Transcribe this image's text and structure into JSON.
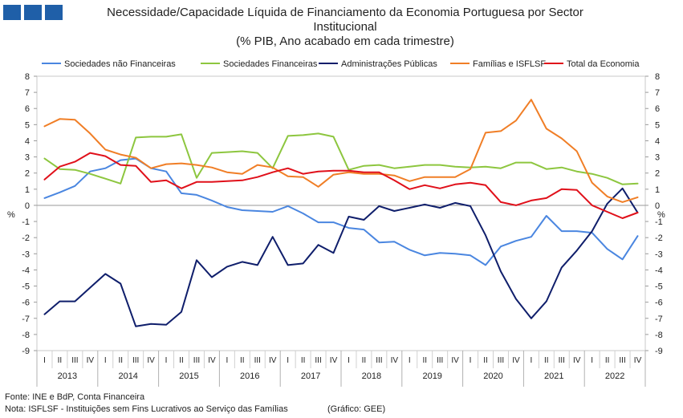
{
  "title": {
    "line1": "Necessidade/Capacidade Líquida de Financiamento da Economia Portuguesa por Sector",
    "line2": "Institucional",
    "line3": "(% PIB, Ano acabado em cada trimestre)"
  },
  "footer": {
    "source": "Fonte: INE e  BdP, Conta Financeira",
    "note": "Nota: ISFLSF - Instituições sem Fins Lucrativos ao Serviço das Famílias",
    "credit": "(Gráfico: GEE)"
  },
  "brand": {
    "logo_color": "#1f5fa8"
  },
  "chart_data": {
    "type": "line",
    "ylabel_left": "%",
    "ylabel_right": "%",
    "ylim": [
      -9,
      8
    ],
    "yticks": [
      8,
      7,
      6,
      5,
      4,
      3,
      2,
      1,
      0,
      -1,
      -2,
      -3,
      -4,
      -5,
      -6,
      -7,
      -8,
      -9
    ],
    "quarters": [
      "I",
      "II",
      "III",
      "IV"
    ],
    "years": [
      "2013",
      "2014",
      "2015",
      "2016",
      "2017",
      "2018",
      "2019",
      "2020",
      "2021",
      "2022"
    ],
    "legend_position": "top",
    "series": [
      {
        "name": "Sociedades não Financeiras",
        "color": "#4a86e0",
        "values": [
          0.45,
          0.8,
          1.2,
          2.1,
          2.3,
          2.8,
          2.9,
          2.3,
          2.1,
          0.75,
          0.65,
          0.3,
          -0.1,
          -0.3,
          -0.35,
          -0.4,
          -0.05,
          -0.5,
          -1.05,
          -1.05,
          -1.4,
          -1.5,
          -2.3,
          -2.25,
          -2.75,
          -3.1,
          -2.95,
          -3.0,
          -3.1,
          -3.7,
          -2.55,
          -2.2,
          -1.95,
          -0.65,
          -1.6,
          -1.6,
          -1.7,
          -2.7,
          -3.35,
          -1.9
        ]
      },
      {
        "name": "Sociedades Financeiras",
        "color": "#8dc63f",
        "values": [
          2.9,
          2.25,
          2.2,
          1.95,
          1.65,
          1.35,
          4.2,
          4.25,
          4.25,
          4.4,
          1.7,
          3.25,
          3.3,
          3.35,
          3.25,
          2.3,
          4.3,
          4.35,
          4.45,
          4.25,
          2.2,
          2.45,
          2.5,
          2.3,
          2.4,
          2.5,
          2.5,
          2.4,
          2.35,
          2.4,
          2.3,
          2.65,
          2.65,
          2.25,
          2.35,
          2.1,
          1.95,
          1.7,
          1.3,
          1.35
        ]
      },
      {
        "name": "Administrações Públicas",
        "color": "#0f1e6b",
        "values": [
          -6.75,
          -5.95,
          -5.95,
          -5.1,
          -4.25,
          -4.85,
          -7.5,
          -7.35,
          -7.4,
          -6.6,
          -3.4,
          -4.45,
          -3.8,
          -3.5,
          -3.7,
          -1.95,
          -3.7,
          -3.6,
          -2.45,
          -2.95,
          -0.7,
          -0.9,
          -0.05,
          -0.35,
          -0.15,
          0.05,
          -0.15,
          0.15,
          -0.05,
          -1.85,
          -4.1,
          -5.8,
          -7.0,
          -5.95,
          -3.85,
          -2.8,
          -1.6,
          0.1,
          1.05,
          -0.45
        ]
      },
      {
        "name": "Famílias e ISFLSF",
        "color": "#f07e26",
        "values": [
          4.9,
          5.35,
          5.3,
          4.45,
          3.45,
          3.15,
          2.95,
          2.3,
          2.55,
          2.6,
          2.5,
          2.35,
          2.05,
          1.95,
          2.5,
          2.35,
          1.8,
          1.75,
          1.15,
          1.9,
          2.05,
          1.95,
          1.95,
          1.85,
          1.5,
          1.75,
          1.75,
          1.75,
          2.25,
          4.5,
          4.6,
          5.25,
          6.55,
          4.75,
          4.15,
          3.35,
          1.4,
          0.55,
          0.2,
          0.5
        ]
      },
      {
        "name": "Total da Economia",
        "color": "#e0101a",
        "values": [
          1.6,
          2.4,
          2.7,
          3.25,
          3.05,
          2.5,
          2.45,
          1.45,
          1.55,
          1.05,
          1.45,
          1.45,
          1.5,
          1.55,
          1.75,
          2.05,
          2.3,
          1.95,
          2.1,
          2.15,
          2.15,
          2.05,
          2.05,
          1.55,
          1.0,
          1.25,
          1.05,
          1.3,
          1.4,
          1.25,
          0.2,
          0.0,
          0.3,
          0.45,
          1.0,
          0.95,
          0.0,
          -0.4,
          -0.8,
          -0.45
        ]
      }
    ]
  }
}
